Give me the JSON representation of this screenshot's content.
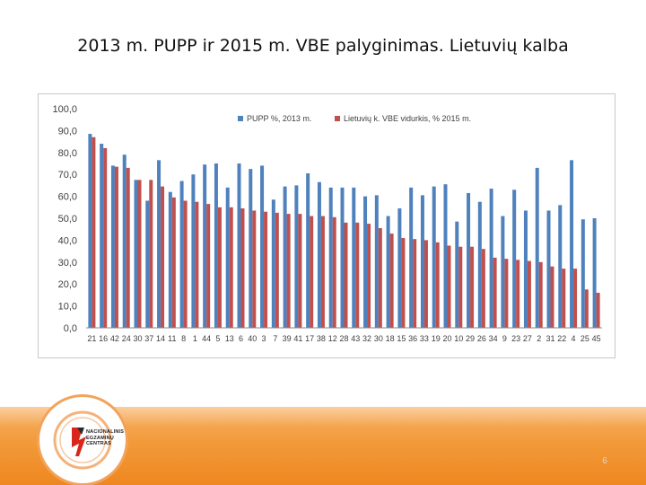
{
  "title": "2013 m. PUPP ir 2015 m. VBE palyginimas. Lietuvių kalba",
  "logo": {
    "line1": "NACIONALINIS",
    "line2": "EGZAMINŲ",
    "line3": "CENTRAS"
  },
  "page_number": "6",
  "colors": {
    "series1": "#4f81bd",
    "series2": "#c0504d",
    "axis": "#8a8a8a",
    "text": "#404040"
  },
  "chart_data": {
    "type": "bar",
    "title": "",
    "xlabel": "",
    "ylabel": "",
    "ylim": [
      0,
      100
    ],
    "yticks": [
      "0,0",
      "10,0",
      "20,0",
      "30,0",
      "40,0",
      "50,0",
      "60,0",
      "70,0",
      "80,0",
      "90,0",
      "100,0"
    ],
    "legend_position": "top",
    "categories": [
      "21",
      "16",
      "42",
      "24",
      "30",
      "37",
      "14",
      "11",
      "8",
      "1",
      "44",
      "5",
      "13",
      "6",
      "40",
      "3",
      "7",
      "39",
      "41",
      "17",
      "38",
      "12",
      "28",
      "43",
      "32",
      "30",
      "18",
      "15",
      "36",
      "33",
      "19",
      "20",
      "10",
      "29",
      "26",
      "34",
      "9",
      "23",
      "27",
      "2",
      "31",
      "22",
      "4",
      "25",
      "45"
    ],
    "series": [
      {
        "name": "PUPP %, 2013 m.",
        "values": [
          88.5,
          84,
          74,
          79,
          67.5,
          58,
          76.5,
          62,
          67,
          70,
          74.5,
          75,
          64,
          75,
          72.5,
          74,
          58.5,
          64.5,
          65,
          70.5,
          66.5,
          64,
          64,
          64,
          60,
          60.5,
          51,
          54.5,
          64,
          60.5,
          64.5,
          65.5,
          48.5,
          61.5,
          57.5,
          63.5,
          51,
          63,
          53.5,
          73,
          53.5,
          56,
          76.5,
          49.5,
          50
        ]
      },
      {
        "name": "Lietuvių k. VBE vidurkis, % 2015 m.",
        "values": [
          87,
          82,
          73.5,
          73,
          67.5,
          67.5,
          64.5,
          59.5,
          58,
          57.5,
          56.5,
          55,
          55,
          54.5,
          53.5,
          53,
          52.5,
          52,
          52,
          51,
          51,
          50.5,
          48,
          48,
          47.5,
          45.5,
          43,
          41,
          40.5,
          40,
          39,
          37.5,
          37,
          37,
          36,
          32,
          31.5,
          31,
          30.5,
          30,
          28,
          27,
          27,
          17.5,
          16
        ]
      }
    ]
  }
}
